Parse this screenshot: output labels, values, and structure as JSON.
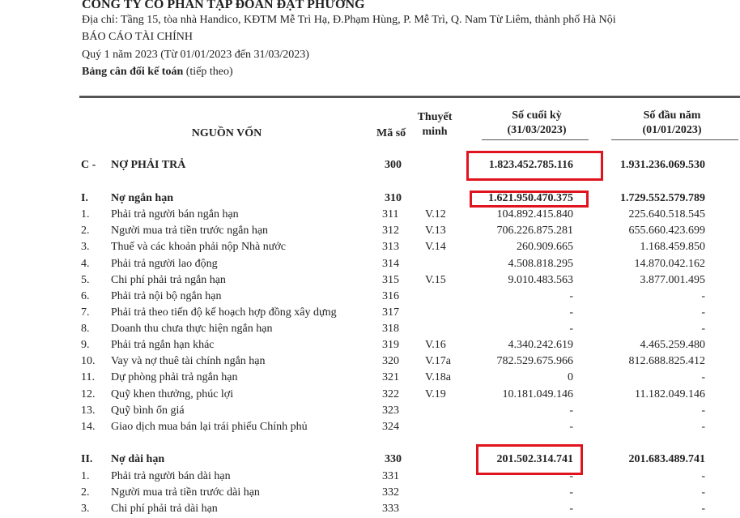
{
  "header": {
    "company": "CÔNG TY CỔ PHẦN TẬP ĐOÀN ĐẠT PHƯƠNG",
    "address": "Địa chỉ: Tầng 15, tòa nhà Handico, KĐTM Mễ Trì Hạ, Đ.Phạm Hùng, P. Mễ Trì, Q. Nam Từ Liêm, thành phố Hà Nội",
    "report": "BÁO CÁO TÀI CHÍNH",
    "period": "Quý 1 năm 2023 (Từ 01/01/2023 đến 31/03/2023)",
    "sheet": "Bảng cân đối kế toán",
    "sheet_note": "(tiếp theo)"
  },
  "table": {
    "columns": {
      "section": "NGUỒN VỐN",
      "code": "Mã số",
      "note": [
        "Thuyết",
        "minh"
      ],
      "end": [
        "Số cuối kỳ",
        "(31/03/2023)"
      ],
      "begin": [
        "Số đầu năm",
        "(01/01/2023)"
      ]
    },
    "rows": [
      {
        "no": "C -",
        "name": "NỢ PHẢI TRẢ",
        "code": "300",
        "end": "1.823.452.785.116",
        "begin": "1.931.236.069.530"
      },
      {
        "no": "I.",
        "name": "Nợ ngắn hạn",
        "code": "310",
        "end": "1.621.950.470.375",
        "begin": "1.729.552.579.789"
      },
      {
        "no": "1.",
        "name": "Phải trả người bán ngắn hạn",
        "code": "311",
        "note": "V.12",
        "end": "104.892.415.840",
        "begin": "225.640.518.545"
      },
      {
        "no": "2.",
        "name": "Người mua trả tiền trước ngắn hạn",
        "code": "312",
        "note": "V.13",
        "end": "706.226.875.281",
        "begin": "655.660.423.699"
      },
      {
        "no": "3.",
        "name": "Thuế và các khoản phải nộp Nhà nước",
        "code": "313",
        "note": "V.14",
        "end": "260.909.665",
        "begin": "1.168.459.850"
      },
      {
        "no": "4.",
        "name": "Phải trả người lao động",
        "code": "314",
        "end": "4.508.818.295",
        "begin": "14.870.042.162"
      },
      {
        "no": "5.",
        "name": "Chi phí phải trả ngắn hạn",
        "code": "315",
        "note": "V.15",
        "end": "9.010.483.563",
        "begin": "3.877.001.495"
      },
      {
        "no": "6.",
        "name": "Phải trả nội bộ ngắn hạn",
        "code": "316",
        "end": "-",
        "begin": "-"
      },
      {
        "no": "7.",
        "name": "Phải trả theo tiến độ kế hoạch hợp đồng xây dựng",
        "code": "317",
        "end": "-",
        "begin": "-"
      },
      {
        "no": "8.",
        "name": "Doanh thu chưa thực hiện ngắn hạn",
        "code": "318",
        "end": "-",
        "begin": "-"
      },
      {
        "no": "9.",
        "name": "Phải trả ngắn hạn khác",
        "code": "319",
        "note": "V.16",
        "end": "4.340.242.619",
        "begin": "4.465.259.480"
      },
      {
        "no": "10.",
        "name": "Vay và nợ thuê tài chính ngắn hạn",
        "code": "320",
        "note": "V.17a",
        "end": "782.529.675.966",
        "begin": "812.688.825.412"
      },
      {
        "no": "11.",
        "name": "Dự phòng phải trả ngắn hạn",
        "code": "321",
        "note": "V.18a",
        "end": "0",
        "begin": "-"
      },
      {
        "no": "12.",
        "name": "Quỹ khen thưởng, phúc lợi",
        "code": "322",
        "note": "V.19",
        "end": "10.181.049.146",
        "begin": "11.182.049.146"
      },
      {
        "no": "13.",
        "name": "Quỹ bình ổn giá",
        "code": "323",
        "end": "-",
        "begin": "-"
      },
      {
        "no": "14.",
        "name": "Giao dịch mua bán lại trái phiếu Chính phủ",
        "code": "324",
        "end": "-",
        "begin": "-"
      },
      {
        "no": "II.",
        "name": "Nợ dài hạn",
        "code": "330",
        "end": "201.502.314.741",
        "begin": "201.683.489.741"
      },
      {
        "no": "1.",
        "name": "Phải trả người bán dài hạn",
        "code": "331",
        "end": "-",
        "begin": "-"
      },
      {
        "no": "2.",
        "name": "Người mua trả tiền trước dài hạn",
        "code": "332",
        "end": "-",
        "begin": "-"
      },
      {
        "no": "3.",
        "name": "Chi phí phải trả dài hạn",
        "code": "333",
        "end": "-",
        "begin": "-"
      }
    ]
  }
}
